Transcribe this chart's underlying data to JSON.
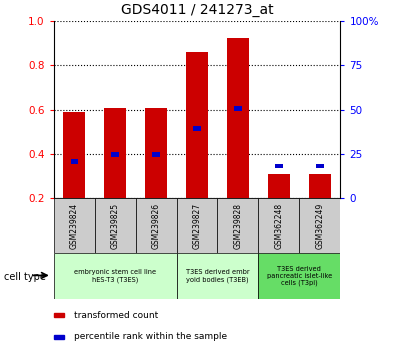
{
  "title": "GDS4011 / 241273_at",
  "categories": [
    "GSM239824",
    "GSM239825",
    "GSM239826",
    "GSM239827",
    "GSM239828",
    "GSM362248",
    "GSM362249"
  ],
  "transformed_count": [
    0.59,
    0.61,
    0.61,
    0.86,
    0.925,
    0.31,
    0.31
  ],
  "percentile_rank": [
    0.355,
    0.385,
    0.385,
    0.505,
    0.595,
    0.335,
    0.335
  ],
  "bar_bottom": 0.2,
  "ylim": [
    0.2,
    1.0
  ],
  "y2lim": [
    0,
    100
  ],
  "yticks": [
    0.2,
    0.4,
    0.6,
    0.8,
    1.0
  ],
  "y2ticks": [
    0,
    25,
    50,
    75,
    100
  ],
  "y2labels": [
    "0",
    "25",
    "50",
    "75",
    "100%"
  ],
  "bar_color": "#cc0000",
  "percentile_color": "#0000cc",
  "bg_color": "#ffffff",
  "tick_label_bg": "#cccccc",
  "cell_groups": [
    {
      "label": "embryonic stem cell line\nhES-T3 (T3ES)",
      "start": 0,
      "end": 3,
      "color": "#ccffcc"
    },
    {
      "label": "T3ES derived embr\nyoid bodies (T3EB)",
      "start": 3,
      "end": 5,
      "color": "#ccffcc"
    },
    {
      "label": "T3ES derived\npancreatic islet-like\ncells (T3pi)",
      "start": 5,
      "end": 7,
      "color": "#66dd66"
    }
  ],
  "cell_type_label": "cell type",
  "legend_items": [
    {
      "label": "transformed count",
      "color": "#cc0000"
    },
    {
      "label": "percentile rank within the sample",
      "color": "#0000cc"
    }
  ],
  "bar_width": 0.55,
  "blue_bar_width": 0.18,
  "blue_bar_height": 0.022
}
